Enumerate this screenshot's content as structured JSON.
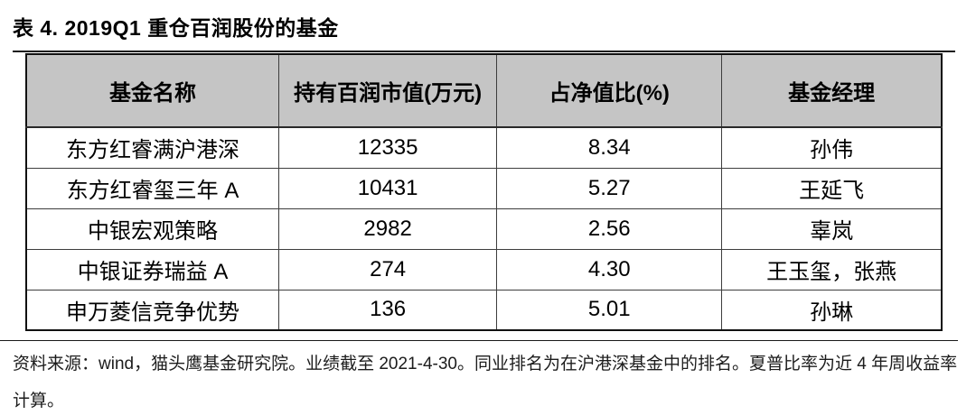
{
  "page": {
    "title": "表 4. 2019Q1 重仓百润股份的基金"
  },
  "table": {
    "headers": [
      "基金名称",
      "持有百润市值(万元)",
      "占净值比(%)",
      "基金经理"
    ],
    "rows": [
      [
        "东方红睿满沪港深",
        "12335",
        "8.34",
        "孙伟"
      ],
      [
        "东方红睿玺三年 A",
        "10431",
        "5.27",
        "王延飞"
      ],
      [
        "中银宏观策略",
        "2982",
        "2.56",
        "辜岚"
      ],
      [
        "中银证券瑞益 A",
        "274",
        "4.30",
        "王玉玺，张燕"
      ],
      [
        "申万菱信竞争优势",
        "136",
        "5.01",
        "孙琳"
      ]
    ]
  },
  "footnote": {
    "text": "资料来源：wind，猫头鹰基金研究院。业绩截至 2021-4-30。同业排名为在沪港深基金中的排名。夏普比率为近 4 年周收益率计算。"
  },
  "colors": {
    "header_bg": "#c5c5c5",
    "border": "#111111",
    "rule": "#1a1a1a",
    "text": "#000000"
  }
}
